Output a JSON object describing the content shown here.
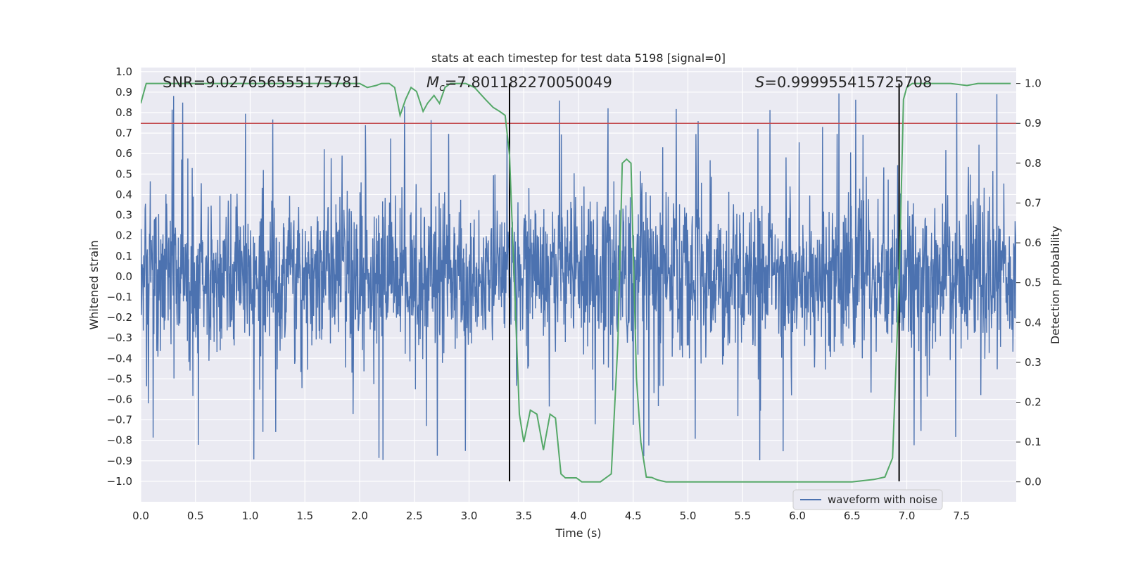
{
  "chart_data": {
    "type": "line",
    "title": "stats at each timestep for test data 5198 [signal=0]",
    "xlabel": "Time (s)",
    "ylabel": "Whitened strain",
    "y2label": "Detection probability",
    "xlim": [
      0.0,
      8.0
    ],
    "ylim": [
      -1.1,
      1.02
    ],
    "y2lim": [
      -0.05,
      1.04
    ],
    "xticks": [
      "0.0",
      "0.5",
      "1.0",
      "1.5",
      "2.0",
      "2.5",
      "3.0",
      "3.5",
      "4.0",
      "4.5",
      "5.0",
      "5.5",
      "6.0",
      "6.5",
      "7.0",
      "7.5"
    ],
    "yticks": [
      "1.0",
      "0.9",
      "0.8",
      "0.7",
      "0.6",
      "0.5",
      "0.4",
      "0.3",
      "0.2",
      "0.1",
      "0.0",
      "−0.1",
      "−0.2",
      "−0.3",
      "−0.4",
      "−0.5",
      "−0.6",
      "−0.7",
      "−0.8",
      "−0.9",
      "−1.0"
    ],
    "y2ticks": [
      "1.0",
      "0.9",
      "0.8",
      "0.7",
      "0.6",
      "0.5",
      "0.4",
      "0.3",
      "0.2",
      "0.1",
      "0.0"
    ],
    "annotations": {
      "snr": "SNR=9.027656555175781",
      "mc_symbol": "M",
      "mc_sub": "c",
      "mc_value": "=7.801182270050049",
      "s_symbol": "S",
      "s_value": "=0.999955415725708"
    },
    "threshold": {
      "value": 0.9,
      "axis": "right",
      "color": "#c44e52"
    },
    "vertical_lines": [
      3.37,
      6.93
    ],
    "series": [
      {
        "name": "waveform with noise",
        "axis": "left",
        "color": "#4c72b0",
        "samples_per_second": 300,
        "typical_amplitude": 0.35,
        "peak_envelope": 0.55,
        "max_abs": 1.0
      },
      {
        "name": "detection probability",
        "axis": "right",
        "color": "#55a868",
        "x": [
          0.0,
          0.05,
          0.15,
          0.3,
          0.6,
          1.0,
          1.5,
          1.9,
          2.0,
          2.07,
          2.15,
          2.2,
          2.27,
          2.32,
          2.37,
          2.42,
          2.47,
          2.52,
          2.58,
          2.62,
          2.68,
          2.73,
          2.78,
          2.83,
          2.9,
          2.97,
          3.05,
          3.15,
          3.22,
          3.28,
          3.33,
          3.37,
          3.41,
          3.46,
          3.5,
          3.56,
          3.62,
          3.68,
          3.74,
          3.79,
          3.84,
          3.88,
          3.93,
          3.98,
          4.03,
          4.1,
          4.2,
          4.3,
          4.36,
          4.4,
          4.44,
          4.48,
          4.53,
          4.57,
          4.62,
          4.67,
          4.72,
          4.8,
          4.86,
          4.95,
          5.1,
          5.3,
          5.5,
          5.7,
          6.0,
          6.3,
          6.5,
          6.7,
          6.8,
          6.87,
          6.93,
          6.97,
          7.0,
          7.05,
          7.2,
          7.4,
          7.55,
          7.65,
          7.95
        ],
        "y": [
          0.95,
          1.0,
          1.0,
          1.0,
          1.0,
          1.0,
          1.0,
          1.0,
          1.0,
          0.99,
          0.995,
          1.0,
          1.0,
          0.99,
          0.92,
          0.96,
          0.99,
          0.98,
          0.93,
          0.95,
          0.97,
          0.95,
          0.99,
          1.0,
          1.0,
          1.0,
          0.99,
          0.96,
          0.94,
          0.93,
          0.92,
          0.82,
          0.53,
          0.17,
          0.1,
          0.18,
          0.17,
          0.08,
          0.17,
          0.16,
          0.02,
          0.01,
          0.01,
          0.01,
          0.0,
          0.0,
          0.0,
          0.02,
          0.35,
          0.8,
          0.81,
          0.8,
          0.26,
          0.1,
          0.012,
          0.011,
          0.005,
          0.0,
          0.0,
          0.0,
          0.0,
          0.0,
          0.0,
          0.0,
          0.0,
          0.0,
          0.0,
          0.006,
          0.012,
          0.06,
          0.5,
          0.96,
          0.99,
          1.0,
          1.0,
          1.0,
          0.995,
          1.0,
          1.0
        ]
      }
    ],
    "legend": {
      "position": "lower-right",
      "entries": [
        "waveform with noise"
      ]
    }
  }
}
